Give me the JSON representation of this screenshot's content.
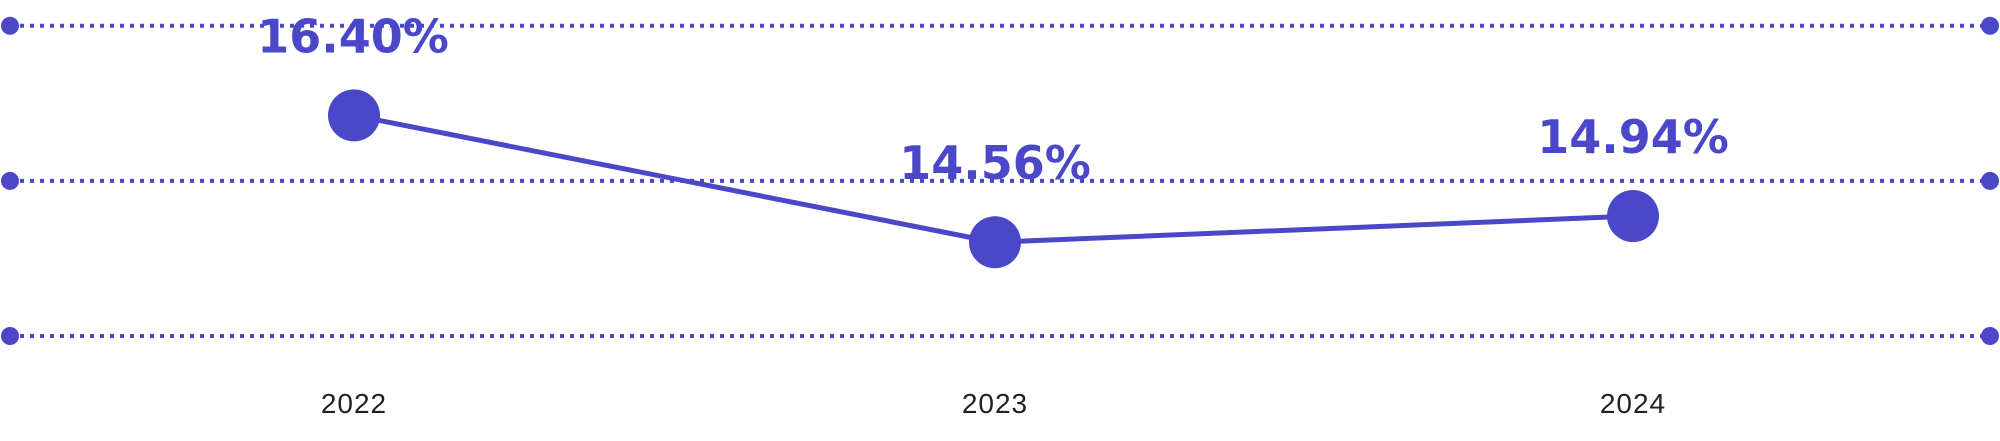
{
  "chart_data": {
    "type": "line",
    "categories": [
      "2022",
      "2023",
      "2024"
    ],
    "values": [
      16.4,
      14.56,
      14.94
    ],
    "data_labels": [
      "16.40%",
      "14.56%",
      "14.94%"
    ],
    "ylim": [
      13.2,
      17.9
    ],
    "grid": true,
    "gridlines_y": [
      13.2,
      15.45,
      17.7
    ],
    "legend": "none",
    "colors": {
      "series": "#4a48c8",
      "grid": "#4a48c8",
      "data_label": "#4a48c8",
      "tick_label": "#222222"
    }
  }
}
